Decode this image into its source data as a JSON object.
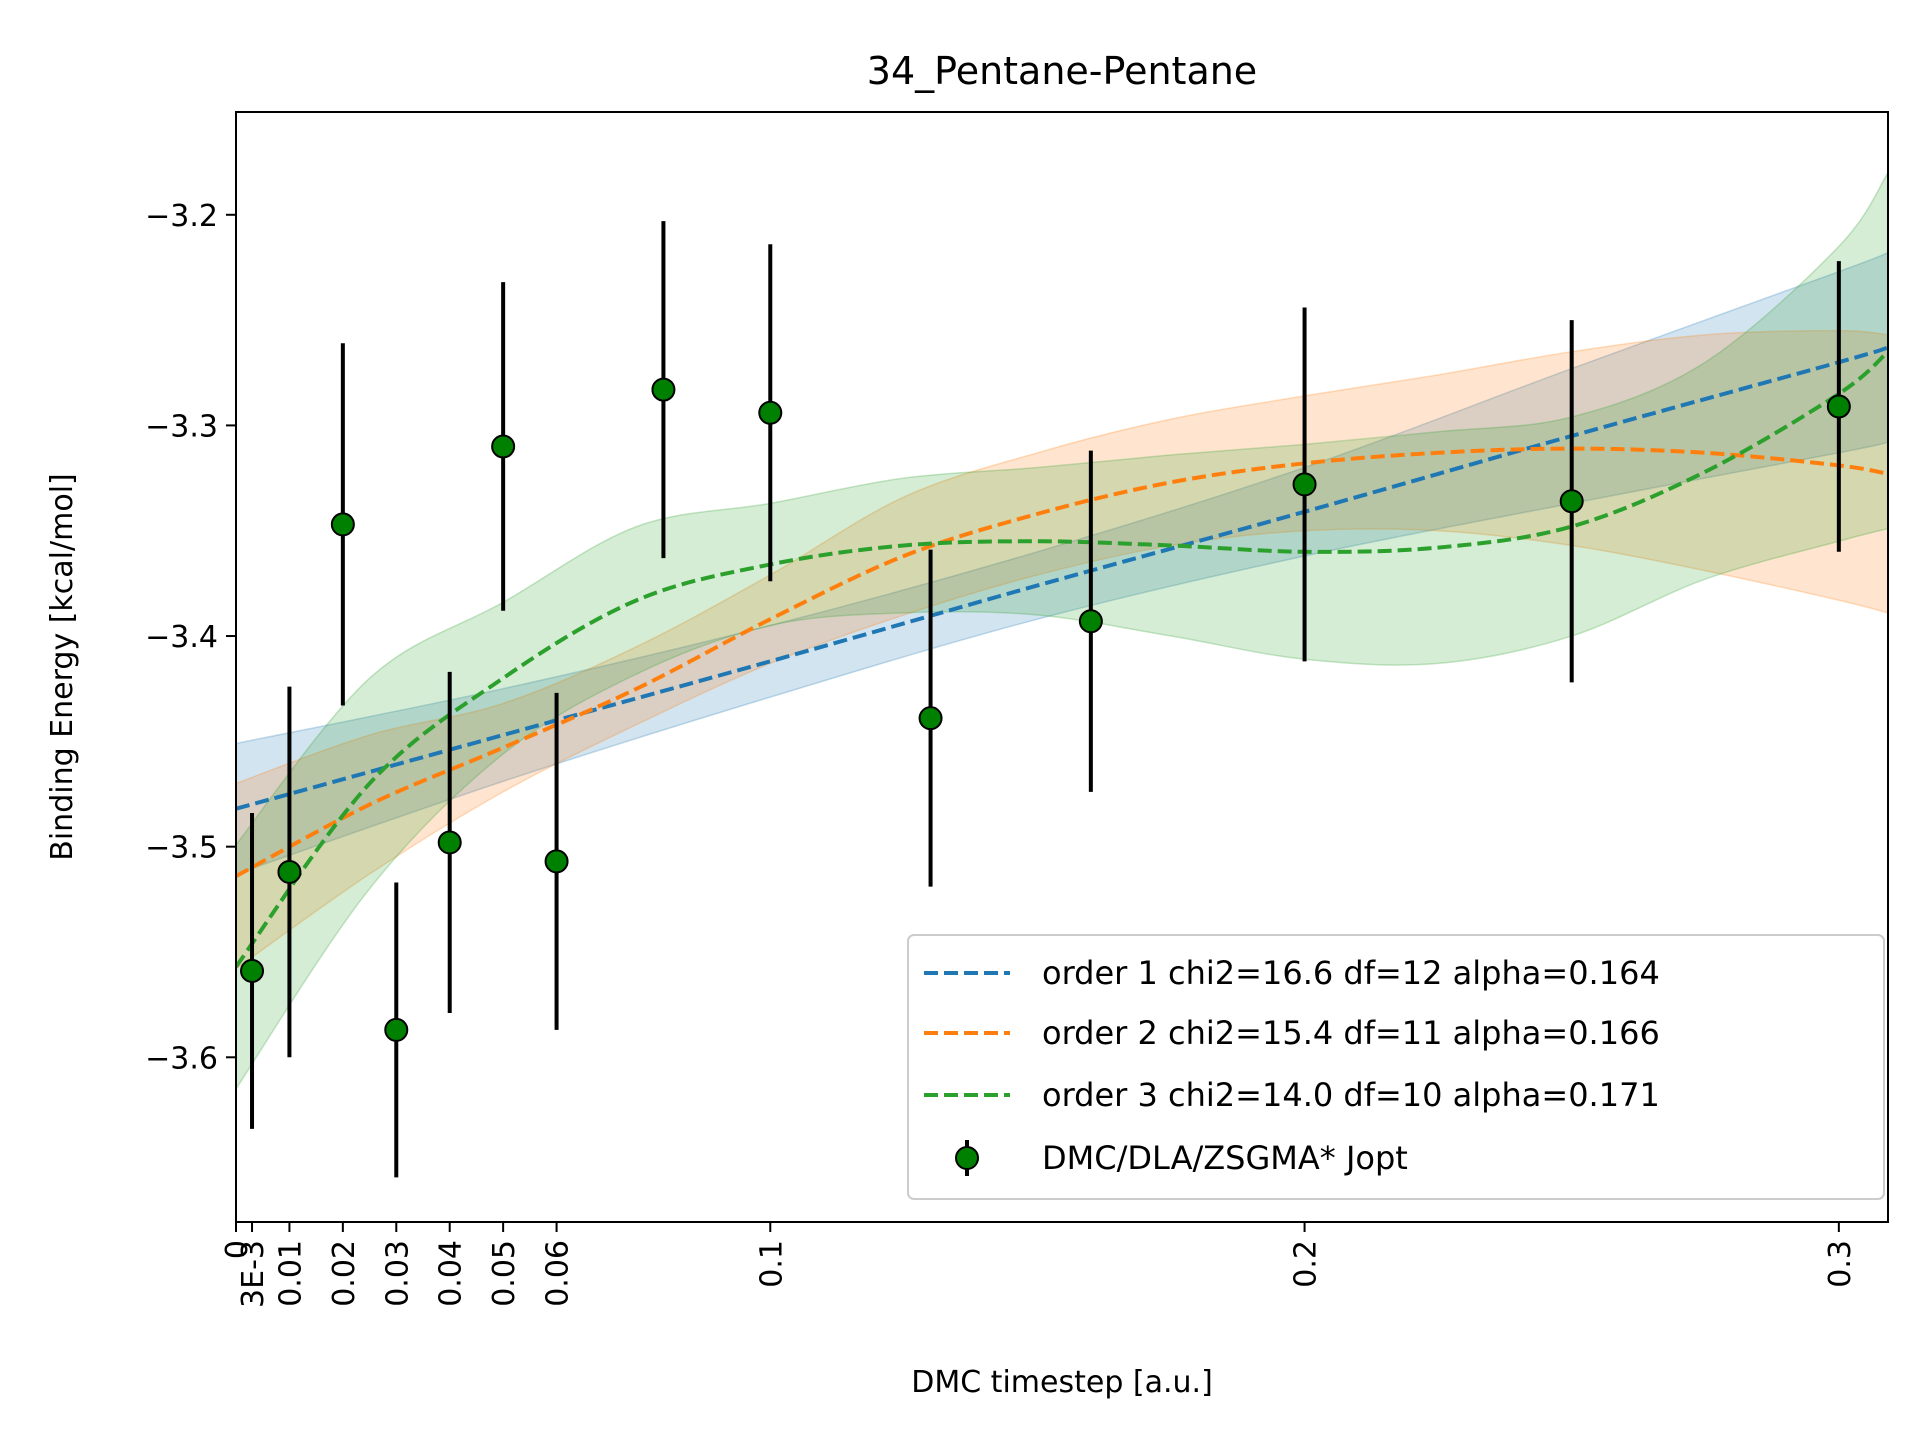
{
  "chart_data": {
    "type": "line",
    "title": "34_Pentane-Pentane",
    "xlabel": "DMC timestep [a.u.]",
    "ylabel": "Binding Energy [kcal/mol]",
    "xlim": [
      0,
      0.3092
    ],
    "ylim": [
      -3.6782,
      -3.1512
    ],
    "x_ticks": [
      {
        "value": 0,
        "label": "0"
      },
      {
        "value": 0.003,
        "label": "3E-3"
      },
      {
        "value": 0.01,
        "label": "0.01"
      },
      {
        "value": 0.02,
        "label": "0.02"
      },
      {
        "value": 0.03,
        "label": "0.03"
      },
      {
        "value": 0.04,
        "label": "0.04"
      },
      {
        "value": 0.05,
        "label": "0.05"
      },
      {
        "value": 0.06,
        "label": "0.06"
      },
      {
        "value": 0.1,
        "label": "0.1"
      },
      {
        "value": 0.2,
        "label": "0.2"
      },
      {
        "value": 0.3,
        "label": "0.3"
      }
    ],
    "y_ticks": [
      {
        "value": -3.6,
        "label": "−3.6"
      },
      {
        "value": -3.5,
        "label": "−3.5"
      },
      {
        "value": -3.4,
        "label": "−3.4"
      },
      {
        "value": -3.3,
        "label": "−3.3"
      },
      {
        "value": -3.2,
        "label": "−3.2"
      }
    ],
    "grid": false,
    "legend_position": "lower-right",
    "points": {
      "name": "DMC/DLA/ZSGMA* Jopt",
      "color": "#008000",
      "x": [
        0.003,
        0.01,
        0.02,
        0.03,
        0.04,
        0.05,
        0.06,
        0.08,
        0.1,
        0.13,
        0.16,
        0.2,
        0.25,
        0.3
      ],
      "y": [
        -3.559,
        -3.512,
        -3.347,
        -3.587,
        -3.498,
        -3.31,
        -3.507,
        -3.283,
        -3.294,
        -3.439,
        -3.393,
        -3.328,
        -3.336,
        -3.291
      ],
      "err": [
        0.075,
        0.088,
        0.086,
        0.07,
        0.081,
        0.078,
        0.08,
        0.08,
        0.08,
        0.08,
        0.081,
        0.084,
        0.086,
        0.069
      ]
    },
    "series": [
      {
        "name": "order 1 chi2=16.6 df=12 alpha=0.164",
        "color": "#1f77b4",
        "x": [
          0,
          0.05,
          0.1,
          0.15,
          0.2,
          0.25,
          0.3,
          0.3092
        ],
        "y": [
          -3.482,
          -3.447,
          -3.412,
          -3.376,
          -3.341,
          -3.305,
          -3.27,
          -3.263
        ],
        "lower": [
          -3.513,
          -3.469,
          -3.429,
          -3.392,
          -3.362,
          -3.337,
          -3.313,
          -3.308
        ],
        "upper": [
          -3.451,
          -3.425,
          -3.395,
          -3.36,
          -3.32,
          -3.273,
          -3.227,
          -3.218
        ]
      },
      {
        "name": "order 2 chi2=15.4 df=11 alpha=0.166",
        "color": "#ff7f0e",
        "x": [
          0,
          0.025,
          0.05,
          0.075,
          0.1,
          0.125,
          0.15,
          0.175,
          0.2,
          0.225,
          0.25,
          0.275,
          0.3,
          0.3092
        ],
        "y": [
          -3.514,
          -3.48,
          -3.453,
          -3.425,
          -3.392,
          -3.362,
          -3.342,
          -3.327,
          -3.318,
          -3.313,
          -3.311,
          -3.313,
          -3.319,
          -3.323
        ],
        "lower": [
          -3.558,
          -3.513,
          -3.474,
          -3.442,
          -3.413,
          -3.39,
          -3.371,
          -3.357,
          -3.35,
          -3.35,
          -3.357,
          -3.369,
          -3.383,
          -3.389
        ],
        "upper": [
          -3.47,
          -3.447,
          -3.432,
          -3.405,
          -3.371,
          -3.334,
          -3.313,
          -3.297,
          -3.286,
          -3.276,
          -3.265,
          -3.257,
          -3.255,
          -3.257
        ]
      },
      {
        "name": "order 3 chi2=14.0 df=10 alpha=0.171",
        "color": "#2ca02c",
        "x": [
          0,
          0.025,
          0.05,
          0.075,
          0.1,
          0.125,
          0.15,
          0.175,
          0.2,
          0.225,
          0.25,
          0.275,
          0.3,
          0.3092
        ],
        "y": [
          -3.557,
          -3.47,
          -3.42,
          -3.383,
          -3.366,
          -3.357,
          -3.355,
          -3.357,
          -3.36,
          -3.358,
          -3.348,
          -3.322,
          -3.285,
          -3.265
        ],
        "lower": [
          -3.615,
          -3.52,
          -3.456,
          -3.418,
          -3.395,
          -3.389,
          -3.39,
          -3.4,
          -3.411,
          -3.413,
          -3.4,
          -3.373,
          -3.355,
          -3.349
        ],
        "upper": [
          -3.499,
          -3.42,
          -3.384,
          -3.348,
          -3.337,
          -3.325,
          -3.32,
          -3.314,
          -3.309,
          -3.303,
          -3.296,
          -3.27,
          -3.215,
          -3.18
        ]
      }
    ]
  }
}
